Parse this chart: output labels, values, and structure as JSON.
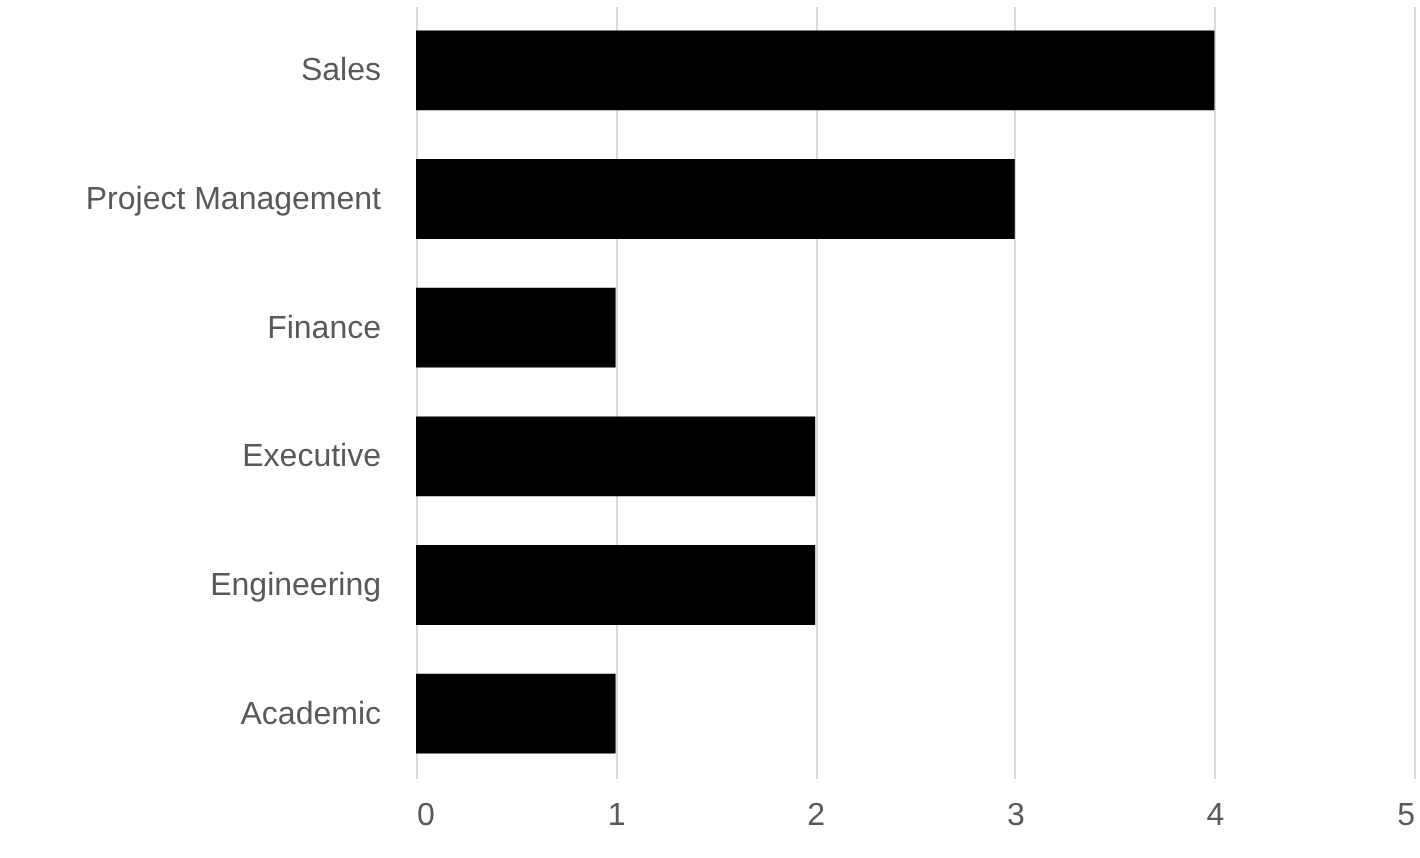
{
  "chart_data": {
    "type": "bar",
    "orientation": "horizontal",
    "categories": [
      "Sales",
      "Project Management",
      "Finance",
      "Executive",
      "Engineering",
      "Academic"
    ],
    "values": [
      4,
      3,
      1,
      2,
      2,
      1
    ],
    "color": "#000000",
    "xlim": [
      0,
      5
    ],
    "xticks": [
      0,
      1,
      2,
      3,
      4,
      5
    ],
    "grid": "x"
  }
}
